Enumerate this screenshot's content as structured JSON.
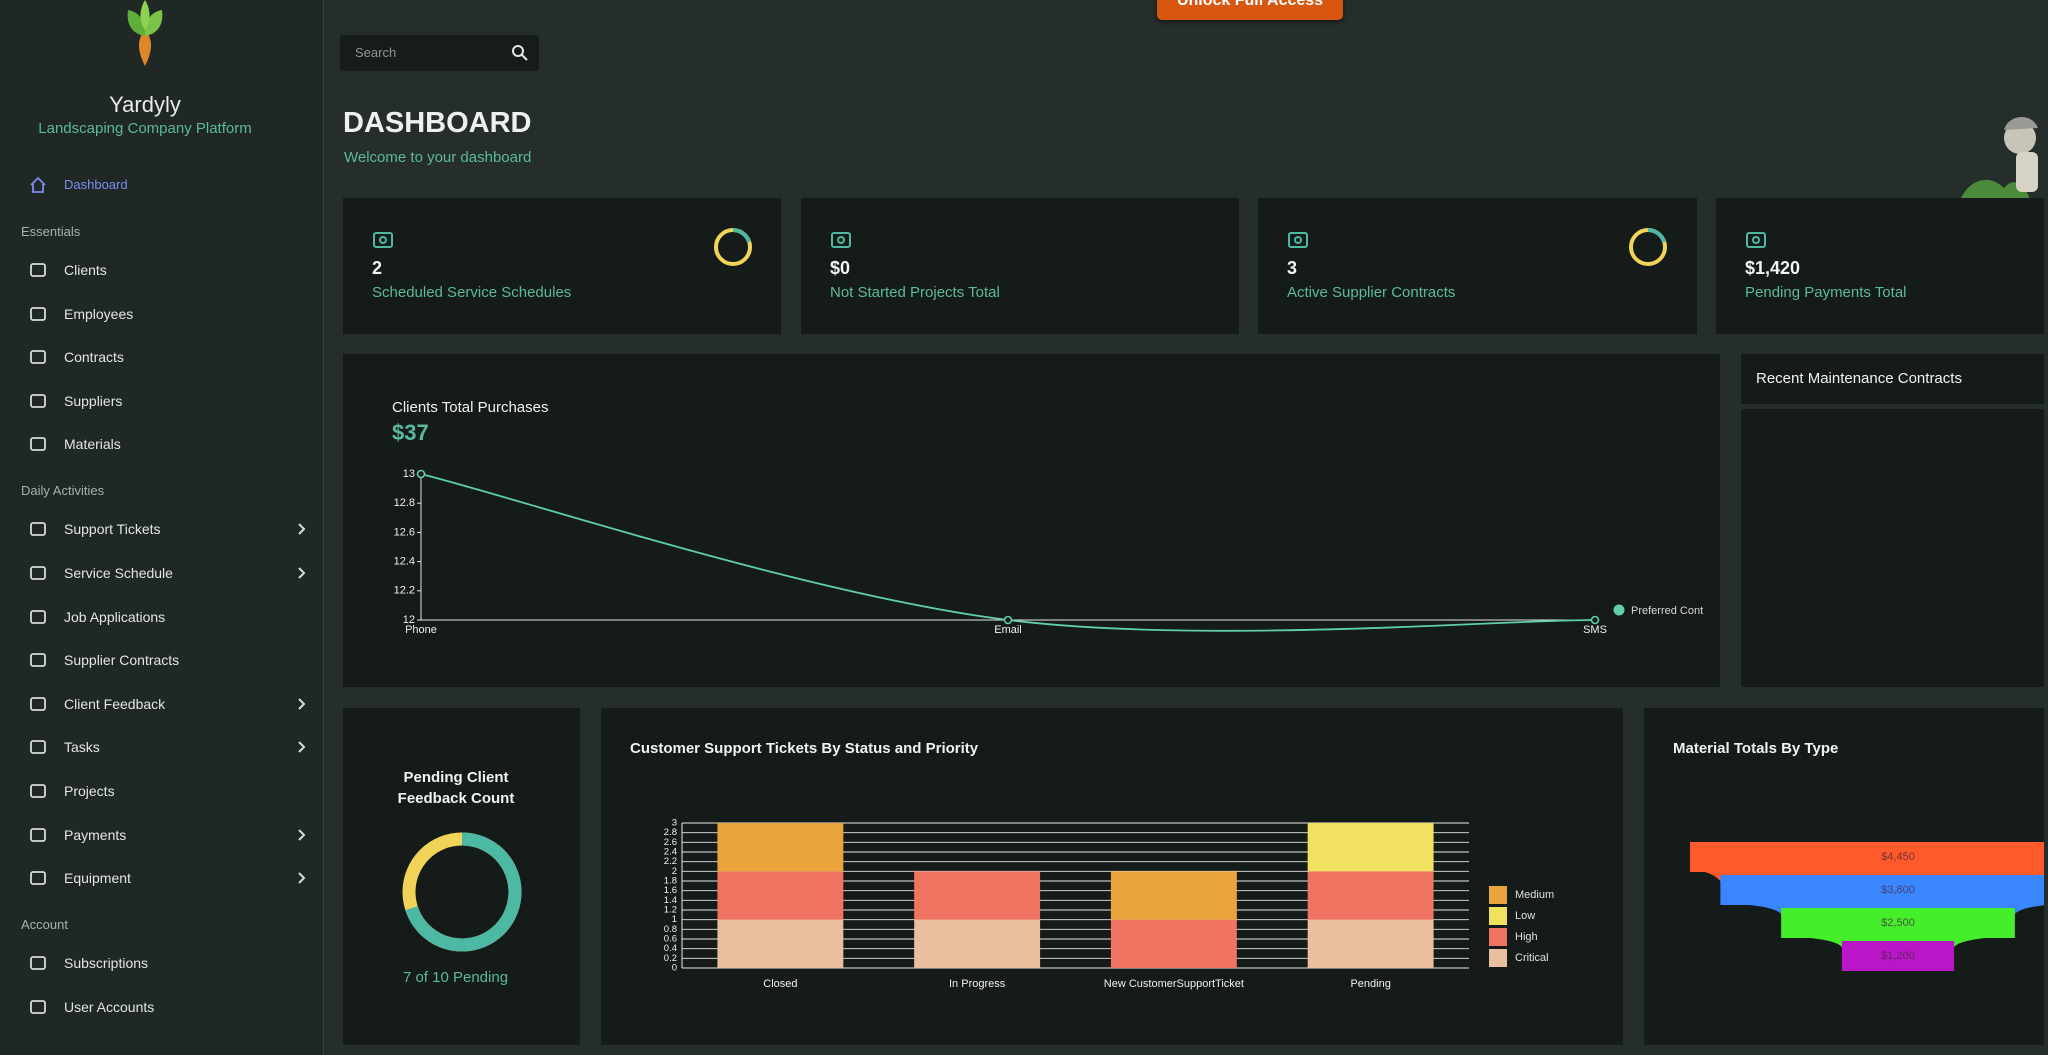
{
  "sidebar": {
    "brand": "Yardyly",
    "tagline": "Landscaping Company Platform",
    "home": {
      "label": "Dashboard"
    },
    "sections": [
      {
        "heading": "Essentials",
        "items": [
          {
            "label": "Clients"
          },
          {
            "label": "Employees"
          },
          {
            "label": "Contracts"
          },
          {
            "label": "Suppliers"
          },
          {
            "label": "Materials"
          }
        ]
      },
      {
        "heading": "Daily Activities",
        "items": [
          {
            "label": "Support Tickets",
            "expandable": true
          },
          {
            "label": "Service Schedule",
            "expandable": true
          },
          {
            "label": "Job Applications"
          },
          {
            "label": "Supplier Contracts"
          },
          {
            "label": "Client Feedback",
            "expandable": true
          },
          {
            "label": "Tasks",
            "expandable": true
          },
          {
            "label": "Projects"
          },
          {
            "label": "Payments",
            "expandable": true
          },
          {
            "label": "Equipment",
            "expandable": true
          }
        ]
      },
      {
        "heading": "Account",
        "items": [
          {
            "label": "Subscriptions"
          },
          {
            "label": "User Accounts"
          }
        ]
      }
    ]
  },
  "header": {
    "cta": "Unlock Full Access",
    "search_placeholder": "Search",
    "title": "DASHBOARD",
    "subtitle": "Welcome to your dashboard"
  },
  "stats": [
    {
      "value": "2",
      "label": "Scheduled Service Schedules",
      "ring": true
    },
    {
      "value": "$0",
      "label": "Not Started Projects Total",
      "ring": false
    },
    {
      "value": "3",
      "label": "Active Supplier Contracts",
      "ring": true
    },
    {
      "value": "$1,420",
      "label": "Pending Payments Total",
      "ring": false
    }
  ],
  "line_chart": {
    "type": "line",
    "title": "Clients Total Purchases",
    "total": "$37",
    "categories": [
      "Phone",
      "Email",
      "SMS"
    ],
    "series": [
      {
        "name": "Preferred Cont",
        "color": "#5fcfa6",
        "values": [
          13,
          12,
          12
        ]
      }
    ],
    "ylim": [
      12,
      13
    ],
    "yticks": [
      12,
      12.2,
      12.4,
      12.6,
      12.8,
      13
    ]
  },
  "recent_contracts": {
    "title": "Recent Maintenance Contracts"
  },
  "feedback": {
    "type": "donut",
    "title": "Pending Client Feedback Count",
    "pending": 7,
    "total": 10,
    "caption": "7 of 10 Pending",
    "colors": [
      "#4db8a4",
      "#f2d35a"
    ]
  },
  "bar_chart": {
    "type": "bar",
    "stacked": true,
    "title": "Customer Support Tickets By Status and Priority",
    "categories": [
      "Closed",
      "In Progress",
      "New CustomerSupportTicket",
      "Pending"
    ],
    "series": [
      {
        "name": "Critical",
        "color": "#eabf9f",
        "values": [
          1,
          1,
          0,
          1
        ]
      },
      {
        "name": "High",
        "color": "#f07462",
        "values": [
          1,
          1,
          1,
          1
        ]
      },
      {
        "name": "Low",
        "color": "#f2e160",
        "values": [
          0,
          0,
          0,
          1
        ]
      },
      {
        "name": "Medium",
        "color": "#e9a53b",
        "values": [
          1,
          0,
          1,
          0
        ]
      }
    ],
    "ylim": [
      0,
      3
    ],
    "yticks": [
      0,
      0.2,
      0.4,
      0.6,
      0.8,
      1,
      1.2,
      1.4,
      1.6,
      1.8,
      2,
      2.2,
      2.4,
      2.6,
      2.8,
      3
    ],
    "grid": true
  },
  "funnel": {
    "type": "funnel",
    "title": "Material Totals By Type",
    "values": [
      4450,
      3800,
      2500,
      1200
    ],
    "value_labels": [
      "$4,450",
      "$3,800",
      "$2,500",
      "$1,200"
    ],
    "colors": [
      "#ff5a2c",
      "#3a86ff",
      "#44ee2a",
      "#b916c8"
    ]
  }
}
